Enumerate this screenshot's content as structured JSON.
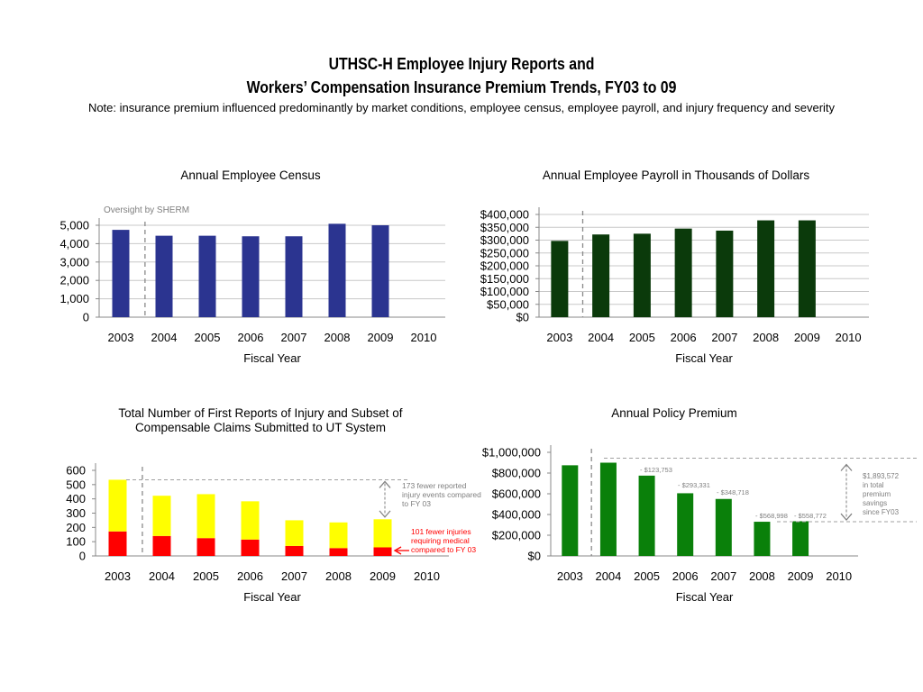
{
  "header": {
    "title_line1": "UTHSC-H Employee Injury Reports and",
    "title_line2": "Workers’ Compensation Insurance Premium Trends, FY03 to 09",
    "note": "Note: insurance premium influenced predominantly by market conditions, employee census, employee payroll, and injury frequency and severity"
  },
  "chart_data": [
    {
      "id": "census",
      "type": "bar",
      "title": "Annual Employee Census",
      "xlabel": "Fiscal Year",
      "ylabel": "",
      "categories": [
        "2003",
        "2004",
        "2005",
        "2006",
        "2007",
        "2008",
        "2009",
        "2010"
      ],
      "values": [
        4750,
        4430,
        4430,
        4400,
        4400,
        5080,
        5000,
        null
      ],
      "ylim": [
        0,
        5000
      ],
      "yticks": [
        0,
        1000,
        2000,
        3000,
        4000,
        5000
      ],
      "yticklabels": [
        "0",
        "1,000",
        "2,000",
        "3,000",
        "4,000",
        "5,000"
      ],
      "color": "#2b3490",
      "grid": true,
      "annotations": [
        {
          "text": "Oversight by SHERM"
        }
      ]
    },
    {
      "id": "payroll",
      "type": "bar",
      "title": "Annual Employee Payroll in Thousands of Dollars",
      "xlabel": "Fiscal Year",
      "ylabel": "",
      "categories": [
        "2003",
        "2004",
        "2005",
        "2006",
        "2007",
        "2008",
        "2009",
        "2010"
      ],
      "values": [
        297000,
        322000,
        325000,
        345000,
        337000,
        377000,
        377000,
        null
      ],
      "ylim": [
        0,
        400000
      ],
      "yticks": [
        0,
        50000,
        100000,
        150000,
        200000,
        250000,
        300000,
        350000,
        400000
      ],
      "yticklabels": [
        "$0",
        "$50,000",
        "$100,000",
        "$150,000",
        "$200,000",
        "$250,000",
        "$300,000",
        "$350,000",
        "$400,000"
      ],
      "color": "#0b3a0b",
      "grid": true
    },
    {
      "id": "injury",
      "type": "bar",
      "stacked": true,
      "title_lines": [
        "Total Number of First Reports of Injury and Subset of",
        "Compensable Claims Submitted to UT System"
      ],
      "xlabel": "Fiscal Year",
      "ylabel": "",
      "categories": [
        "2003",
        "2004",
        "2005",
        "2006",
        "2007",
        "2008",
        "2009",
        "2010"
      ],
      "series": [
        {
          "values": [
            172,
            140,
            125,
            115,
            70,
            55,
            60,
            null
          ],
          "color": "#ff0000"
        },
        {
          "values": [
            362,
            282,
            308,
            268,
            180,
            180,
            197,
            null
          ],
          "color": "#ffff00"
        }
      ],
      "ylim": [
        0,
        600
      ],
      "yticks": [
        0,
        100,
        200,
        300,
        400,
        500,
        600
      ],
      "yticklabels": [
        "0",
        "100",
        "200",
        "300",
        "400",
        "500",
        "600"
      ],
      "grid": false,
      "annotations": [
        {
          "lines": [
            "173 fewer reported",
            "injury events compared",
            "to FY 03"
          ],
          "color": "#7f7f7f"
        },
        {
          "lines": [
            "101 fewer injuries",
            "requiring medical",
            "compared to FY 03"
          ],
          "color": "#ff0000"
        }
      ]
    },
    {
      "id": "premium",
      "type": "bar",
      "title": "Annual Policy Premium",
      "xlabel": "Fiscal Year",
      "ylabel": "",
      "categories": [
        "2003",
        "2004",
        "2005",
        "2006",
        "2007",
        "2008",
        "2009",
        "2010"
      ],
      "values": [
        875000,
        900000,
        775000,
        605000,
        550000,
        330000,
        335000,
        null
      ],
      "ylim": [
        0,
        1000000
      ],
      "yticks": [
        0,
        200000,
        400000,
        600000,
        800000,
        1000000
      ],
      "yticklabels": [
        "$0",
        "$200,000",
        "$400,000",
        "$600,000",
        "$800,000",
        "$1,000,000"
      ],
      "color": "#0a800a",
      "grid": false,
      "annotations": [
        {
          "text": "- $123,753"
        },
        {
          "text": "- $293,331"
        },
        {
          "text": "- $348,718"
        },
        {
          "text": "- $568,998"
        },
        {
          "text": "- $558,772"
        },
        {
          "lines": [
            "$1,893,572",
            "in total",
            "premium",
            "savings",
            "since FY03"
          ]
        }
      ]
    }
  ]
}
